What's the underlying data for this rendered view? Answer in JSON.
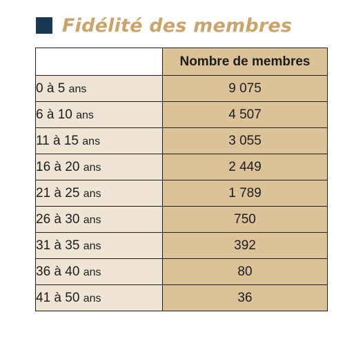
{
  "title": "Fidélité des membres",
  "colors": {
    "title_square": "#1a3852",
    "title_text": "#c9a46d",
    "header_fill": "#dcc298",
    "label_fill": "#efe5d4",
    "value_fill": "#dcc298",
    "border": "#1c1c1c"
  },
  "table": {
    "header_blank": "",
    "column_header": "Nombre de membres",
    "rows": [
      {
        "range": "0 à 5",
        "unit": "ans",
        "members": "9 075"
      },
      {
        "range": "6 à 10",
        "unit": "ans",
        "members": "4 507"
      },
      {
        "range": "11 à 15",
        "unit": "ans",
        "members": "3 055"
      },
      {
        "range": "16 à 20",
        "unit": "ans",
        "members": "2 449"
      },
      {
        "range": "21 à 25",
        "unit": "ans",
        "members": "1 789"
      },
      {
        "range": "26 à 30",
        "unit": "ans",
        "members": "750"
      },
      {
        "range": "31 à 35",
        "unit": "ans",
        "members": "392"
      },
      {
        "range": "36 à 40",
        "unit": "ans",
        "members": "80"
      },
      {
        "range": "41 à 50",
        "unit": "ans",
        "members": "36"
      }
    ]
  }
}
